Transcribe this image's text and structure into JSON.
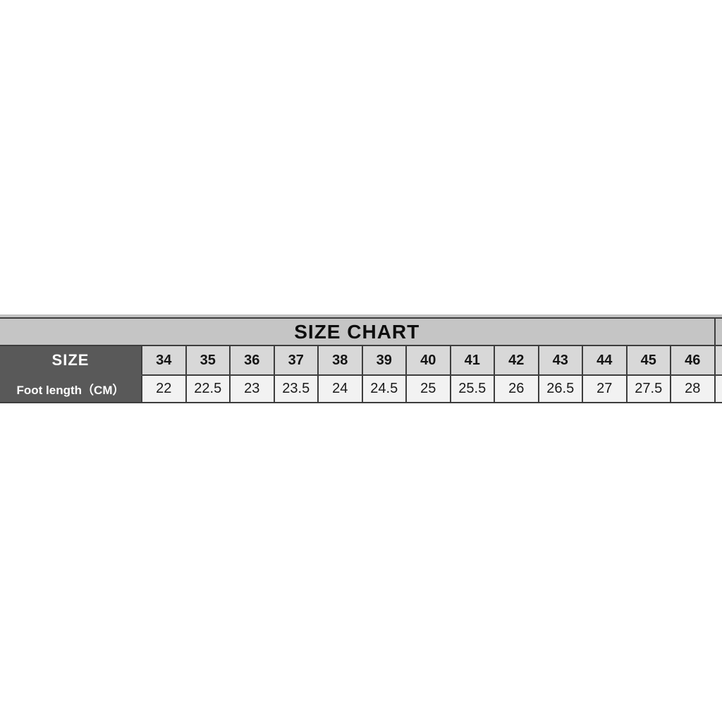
{
  "chart_data": {
    "type": "table",
    "title": "SIZE CHART",
    "row_headers": [
      "SIZE",
      "Foot length（CM）"
    ],
    "sizes": [
      "34",
      "35",
      "36",
      "37",
      "38",
      "39",
      "40",
      "41",
      "42",
      "43",
      "44",
      "45",
      "46"
    ],
    "foot_lengths_cm": [
      "22",
      "22.5",
      "23",
      "23.5",
      "24",
      "24.5",
      "25",
      "25.5",
      "26",
      "26.5",
      "27",
      "27.5",
      "28"
    ]
  },
  "colors": {
    "page_background": "#ffffff",
    "title_bar": "#c5c5c5",
    "top_sliver": "#c2c2c2",
    "header_dark": "#595959",
    "size_row": "#d8d8d8",
    "value_row": "#f2f2f2",
    "border": "#3d3d3d",
    "title_text": "#0d0d0d",
    "header_text": "#ffffff",
    "cell_text": "#1a1a1a"
  }
}
